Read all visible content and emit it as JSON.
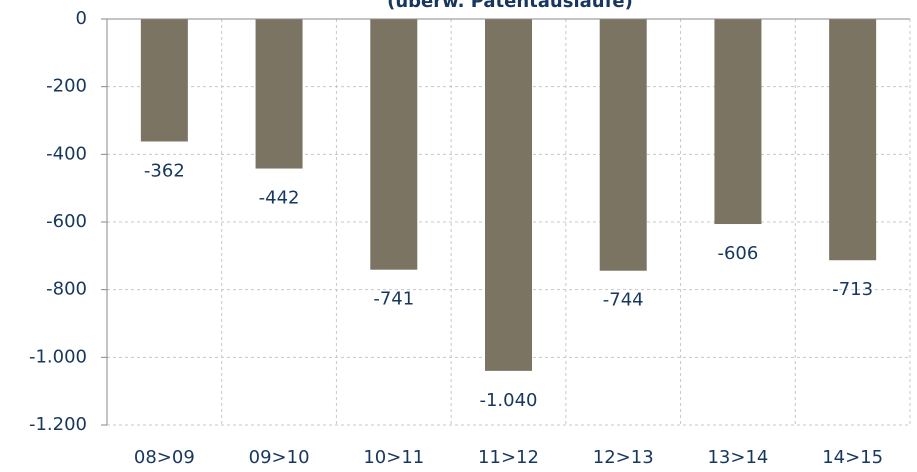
{
  "chart_data": {
    "type": "bar",
    "title": "(überw. Patentausläufe)",
    "categories": [
      "08>09",
      "09>10",
      "10>11",
      "11>12",
      "12>13",
      "13>14",
      "14>15"
    ],
    "values": [
      -362,
      -442,
      -741,
      -1040,
      -744,
      -606,
      -713
    ],
    "value_labels": [
      "-362",
      "-442",
      "-741",
      "-1.040",
      "-744",
      "-606",
      "-713"
    ],
    "color": "#7b7463",
    "ylim": [
      -1200,
      0
    ],
    "yticks": [
      0,
      -200,
      -400,
      -600,
      -800,
      {
        "value": -1000,
        "label": "-1.000"
      },
      {
        "value": -1200,
        "label": "-1.200"
      }
    ],
    "grid": true
  }
}
